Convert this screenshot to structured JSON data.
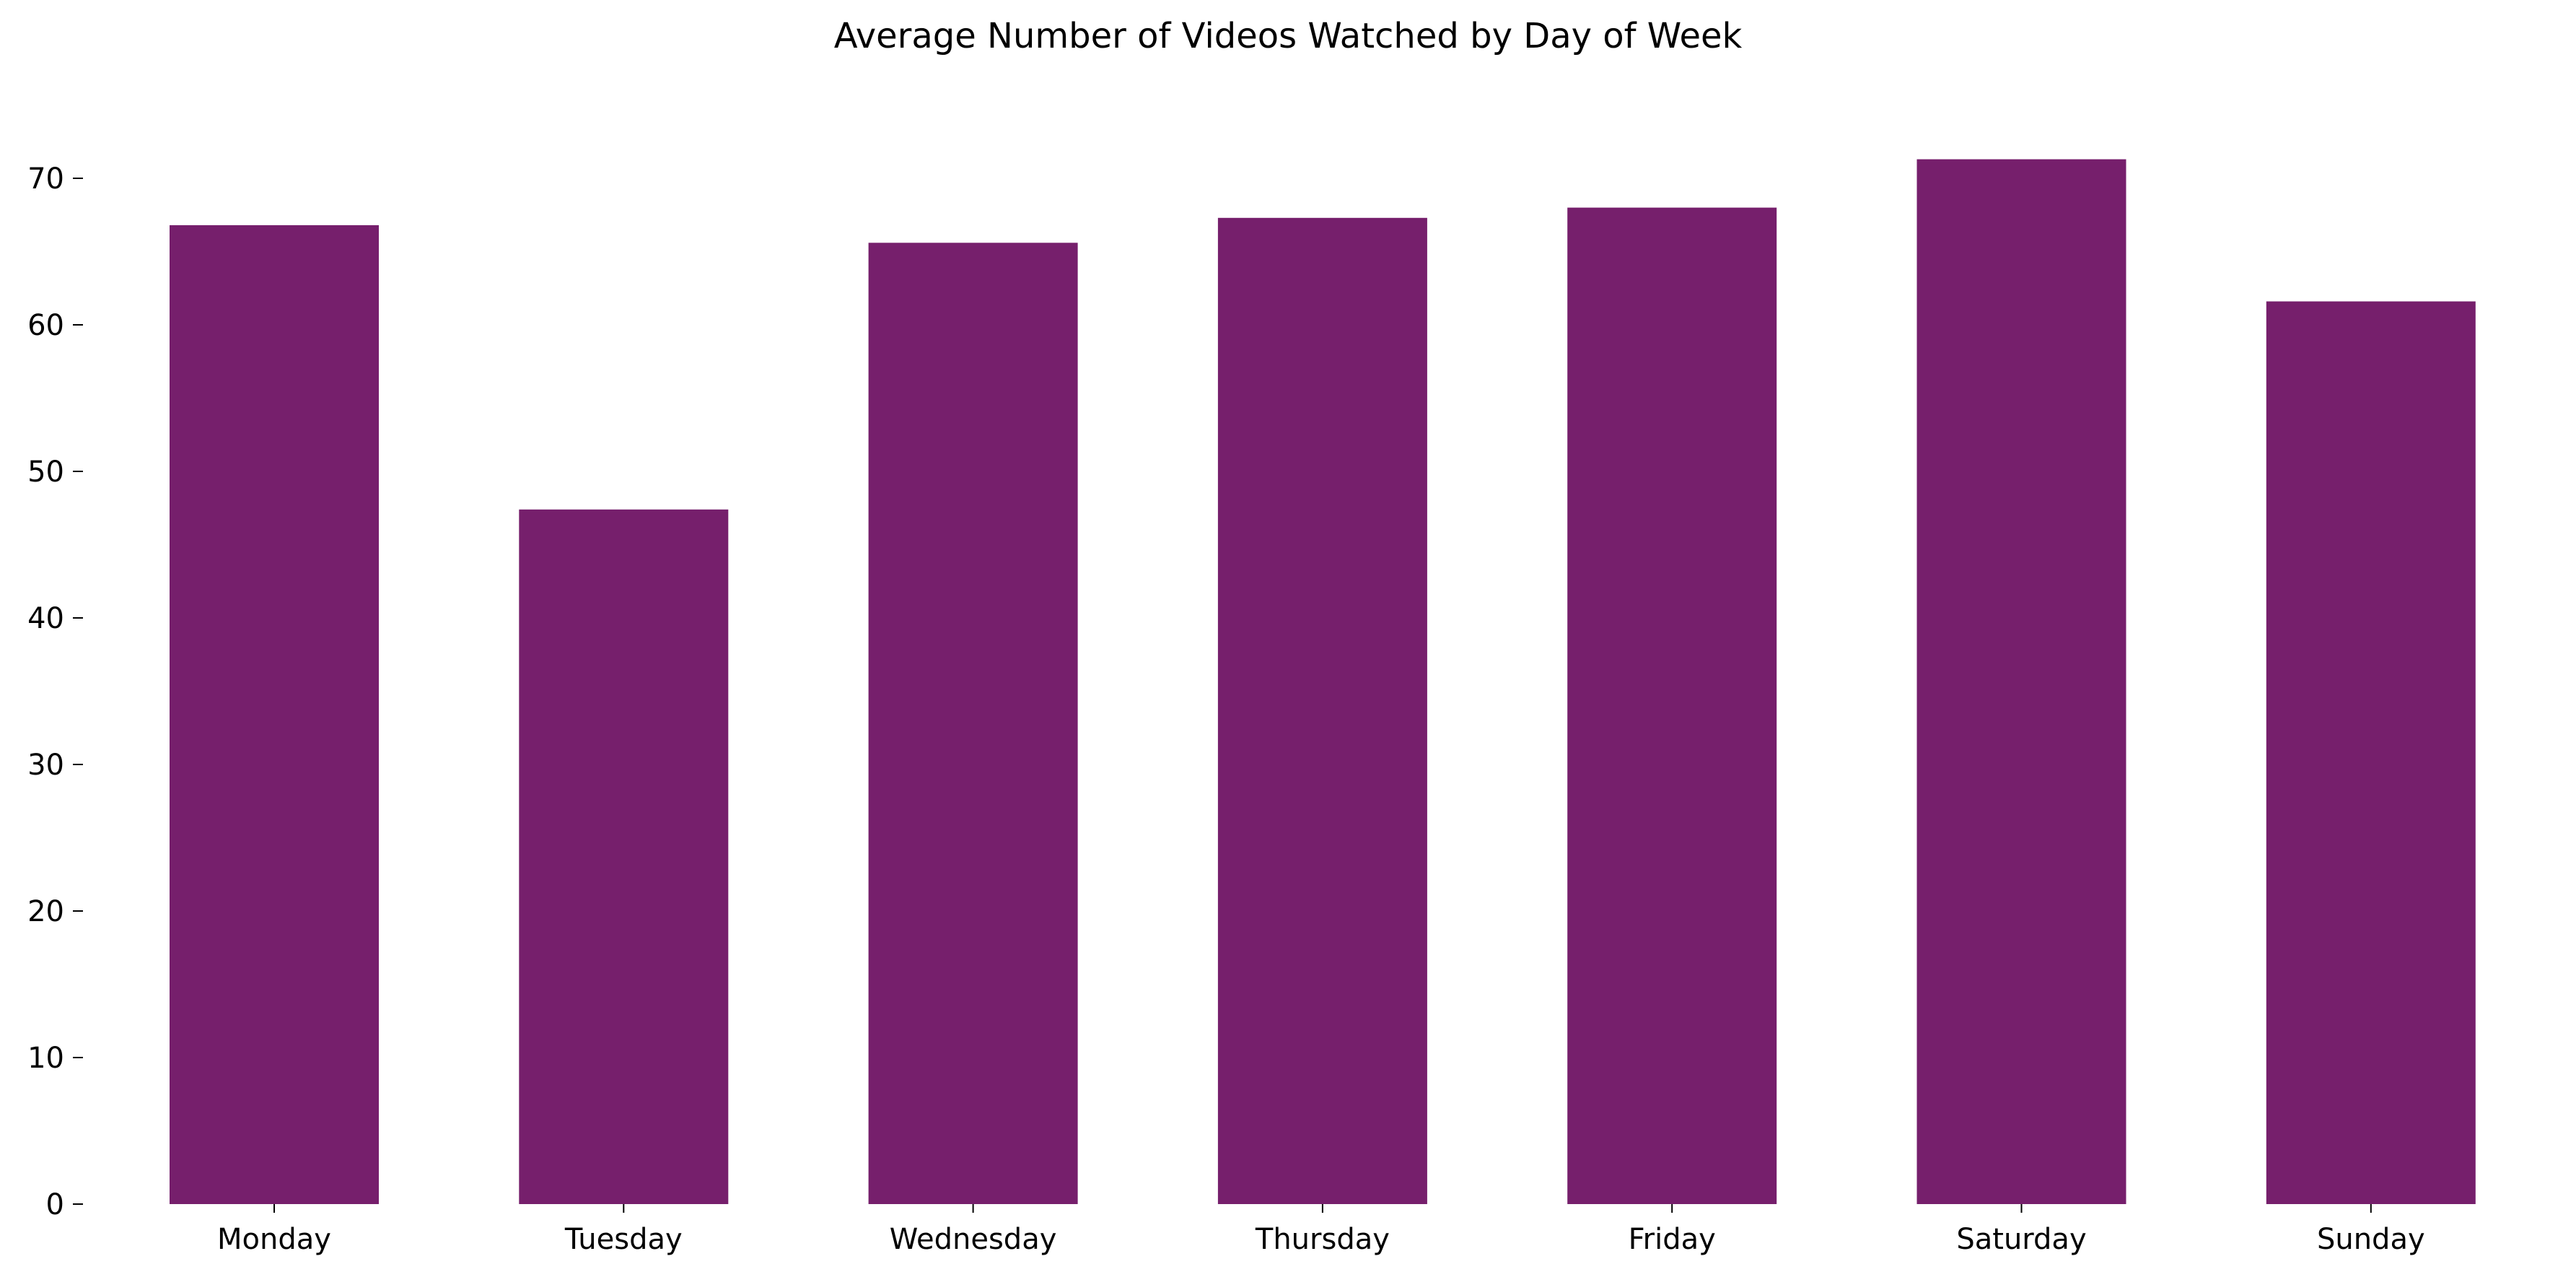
{
  "chart_data": {
    "type": "bar",
    "title": "Average Number of Videos Watched by Day of Week",
    "xlabel": "",
    "ylabel": "",
    "categories": [
      "Monday",
      "Tuesday",
      "Wednesday",
      "Thursday",
      "Friday",
      "Saturday",
      "Sunday"
    ],
    "values": [
      66.8,
      47.4,
      65.6,
      67.3,
      68.0,
      71.3,
      61.6
    ],
    "ylim": [
      0,
      75
    ],
    "yticks": [
      0,
      10,
      20,
      30,
      40,
      50,
      60,
      70
    ],
    "bar_color": "#761f6c",
    "grid": false,
    "legend": "none"
  }
}
